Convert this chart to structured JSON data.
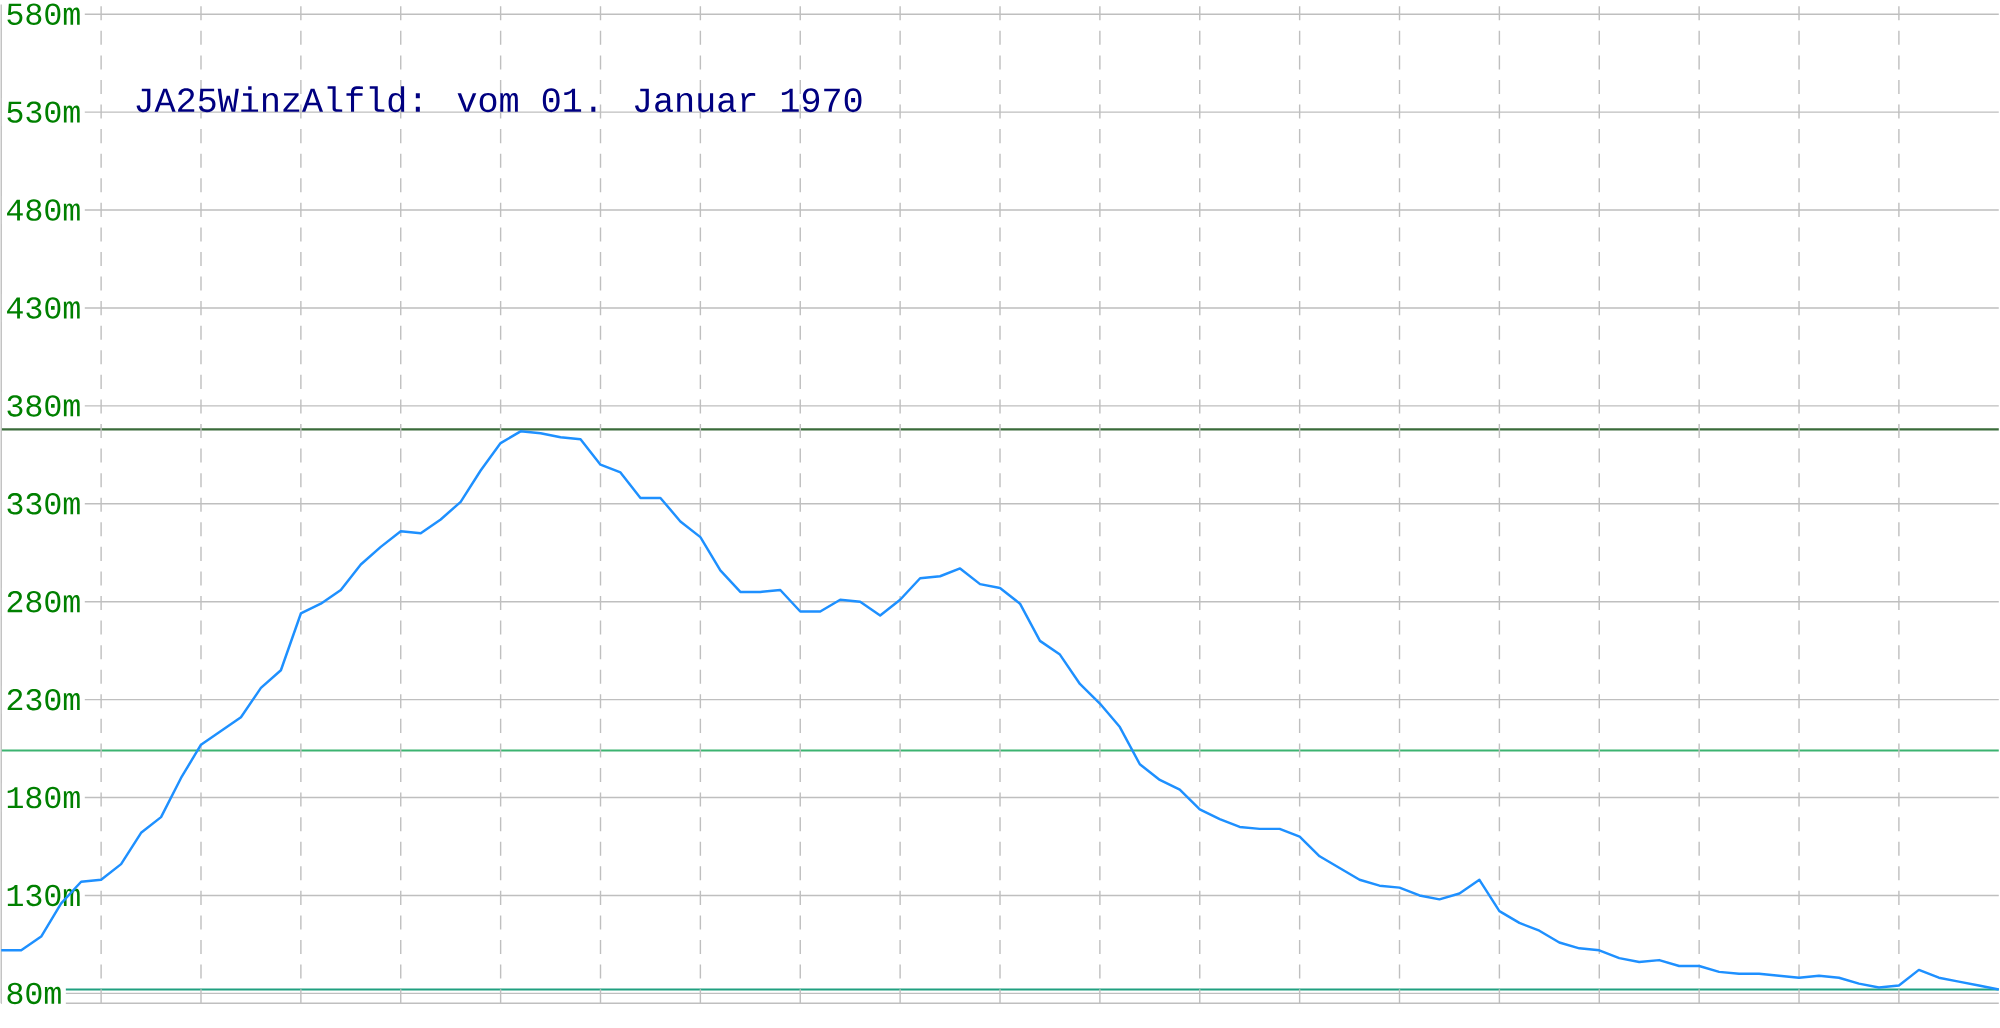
{
  "chart_data": {
    "type": "line",
    "title": "JA25WinzAlfld: vom 01. Januar 1970",
    "categories": [
      null,
      null,
      null,
      null,
      null,
      null,
      null,
      null,
      null,
      null,
      null,
      null,
      null,
      null,
      null,
      null,
      null,
      null,
      null,
      null,
      null,
      null,
      null,
      null,
      null,
      null,
      null,
      null,
      null,
      null,
      null,
      null,
      null,
      null,
      null,
      null,
      null,
      null,
      null,
      null,
      null,
      null,
      null,
      null,
      null,
      null,
      null,
      null,
      null,
      null,
      null,
      null,
      null,
      null,
      null,
      null,
      null,
      null,
      null,
      null,
      null,
      null,
      null,
      null,
      null,
      null,
      null,
      null,
      null,
      null,
      null,
      null,
      null,
      null,
      null,
      null,
      null,
      null,
      null,
      null,
      null,
      null,
      null,
      null,
      null,
      null,
      null,
      null,
      null,
      null,
      null,
      null,
      null,
      null,
      null,
      null,
      null,
      null,
      null,
      null,
      null
    ],
    "series": [
      {
        "color": "#1e90ff",
        "values": [
          102,
          102,
          109,
          126,
          137,
          138,
          146,
          162,
          170,
          190,
          207,
          214,
          221,
          236,
          245,
          274,
          279,
          286,
          299,
          308,
          316,
          315,
          322,
          331,
          347,
          361,
          367,
          366,
          364,
          363,
          350,
          346,
          333,
          333,
          321,
          313,
          296,
          285,
          285,
          286,
          275,
          275,
          281,
          280,
          273,
          281,
          292,
          293,
          297,
          289,
          287,
          279,
          260,
          253,
          238,
          228,
          216,
          197,
          189,
          184,
          174,
          169,
          165,
          164,
          164,
          160,
          150,
          144,
          138,
          135,
          134,
          130,
          128,
          131,
          138,
          122,
          116,
          112,
          106,
          103,
          102,
          98,
          96,
          97,
          94,
          94,
          91,
          90,
          90,
          89,
          88,
          89,
          88,
          85,
          83,
          84,
          92,
          88,
          86,
          84,
          82
        ]
      }
    ],
    "ylim": [
      75,
      585
    ],
    "yticks": [
      {
        "value": 80,
        "label": "80m"
      },
      {
        "value": 130,
        "label": "130m"
      },
      {
        "value": 180,
        "label": "180m"
      },
      {
        "value": 230,
        "label": "230m"
      },
      {
        "value": 280,
        "label": "280m"
      },
      {
        "value": 330,
        "label": "330m"
      },
      {
        "value": 380,
        "label": "380m"
      },
      {
        "value": 430,
        "label": "430m"
      },
      {
        "value": 480,
        "label": "480m"
      },
      {
        "value": 530,
        "label": "530m"
      },
      {
        "value": 580,
        "label": "580m"
      }
    ],
    "ref_lines": [
      {
        "axis": "y",
        "value": 368,
        "color": "#3a6b3a"
      },
      {
        "axis": "y",
        "value": 204,
        "color": "#3cb371"
      },
      {
        "axis": "y",
        "value": 82,
        "color": "#20a080"
      }
    ],
    "grid": true,
    "tick_labels": "y"
  }
}
